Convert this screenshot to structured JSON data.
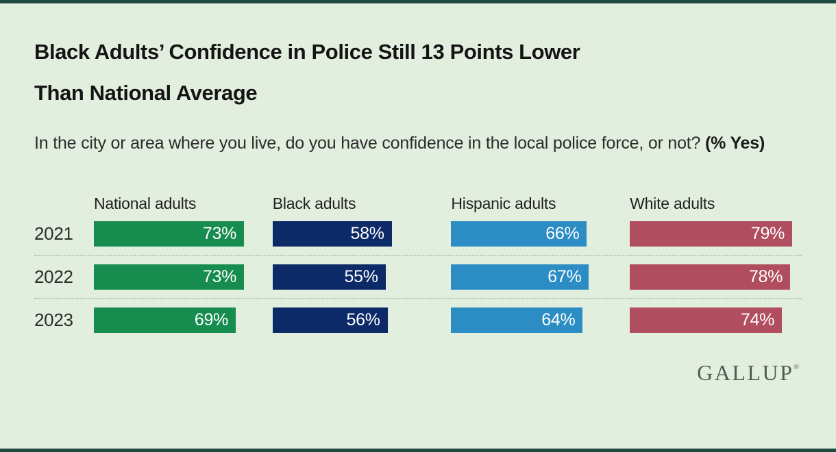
{
  "page": {
    "background_color": "#e3efde",
    "frame_bar_color": "#1d4b44"
  },
  "header": {
    "title_lines": [
      "Black Adults’ Confidence in Police Still 13 Points Lower",
      "Than National Average"
    ],
    "question": "In the city or area where you live, do you have confidence in the local police force, or not?",
    "question_highlight": "(% Yes)"
  },
  "chart_data": {
    "type": "bar",
    "orientation": "horizontal",
    "title": "Black Adults’ Confidence in Police Still 13 Points Lower Than National Average",
    "subtitle": "In the city or area where you live, do you have confidence in the local police force, or not? (% Yes)",
    "categories": [
      "2021",
      "2022",
      "2023"
    ],
    "series": [
      {
        "name": "National adults",
        "color": "#168c4e",
        "values": [
          73,
          73,
          69
        ]
      },
      {
        "name": "Black adults",
        "color": "#0b2a67",
        "values": [
          58,
          55,
          56
        ]
      },
      {
        "name": "Hispanic adults",
        "color": "#2b8dc4",
        "values": [
          66,
          67,
          64
        ]
      },
      {
        "name": "White adults",
        "color": "#b04d5e",
        "values": [
          79,
          78,
          74
        ]
      }
    ],
    "unit": "%",
    "value_axis_range": [
      0,
      100
    ],
    "value_labels_position": "inside-right",
    "legend_position": "column-headers",
    "grid": "dotted separators between year rows",
    "separator_color": "#b3c4ae"
  },
  "footer": {
    "logo_text": "GALLUP",
    "registered_mark": "®",
    "logo_color": "#4f5b53"
  }
}
